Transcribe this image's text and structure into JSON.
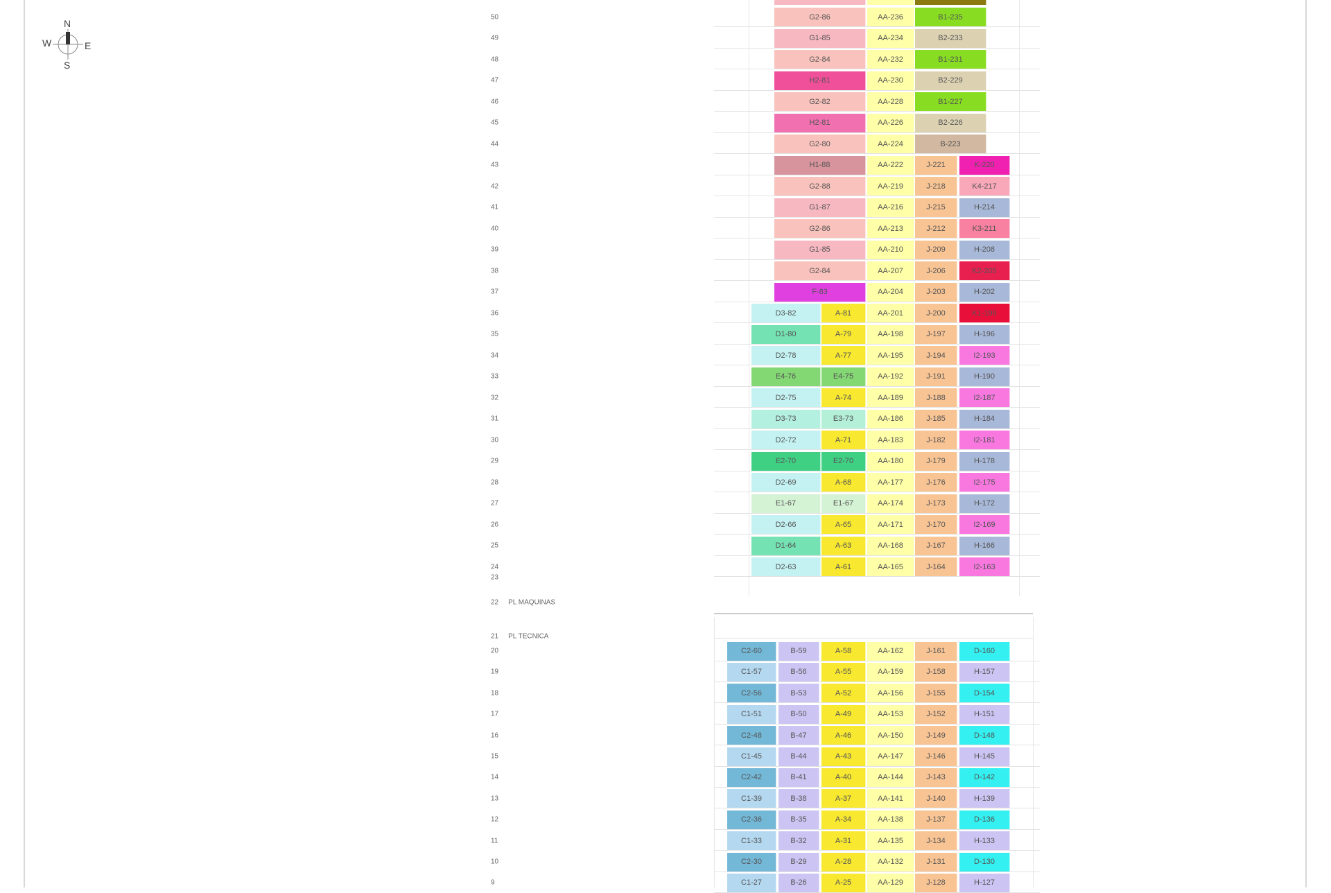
{
  "compass": {
    "n": "N",
    "s": "S",
    "e": "E",
    "w": "W"
  },
  "special_floors": [
    {
      "floor": "23",
      "name": ""
    },
    {
      "floor": "22",
      "name": "PL MAQUINAS"
    },
    {
      "floor": "21",
      "name": "PL TECNICA"
    }
  ],
  "upper_tower": [
    {
      "floor": "50",
      "cells": [
        {
          "label": "G2-86",
          "color": "#f9c2bc"
        },
        {
          "label": "AA-236",
          "color": "#ffffa8"
        },
        {
          "label": "B1-235",
          "color": "#88dd22"
        }
      ]
    },
    {
      "floor": "49",
      "cells": [
        {
          "label": "G1-85",
          "color": "#f7b8c2"
        },
        {
          "label": "AA-234",
          "color": "#ffffa8"
        },
        {
          "label": "B2-233",
          "color": "#dcd2b2"
        }
      ]
    },
    {
      "floor": "48",
      "cells": [
        {
          "label": "G2-84",
          "color": "#f9c2bc"
        },
        {
          "label": "AA-232",
          "color": "#ffffa8"
        },
        {
          "label": "B1-231",
          "color": "#88dd22"
        }
      ]
    },
    {
      "floor": "47",
      "cells": [
        {
          "label": "H2-81",
          "color": "#f0509a"
        },
        {
          "label": "AA-230",
          "color": "#ffffa8"
        },
        {
          "label": "B2-229",
          "color": "#dcd2b2"
        }
      ]
    },
    {
      "floor": "46",
      "cells": [
        {
          "label": "G2-82",
          "color": "#f9c2bc"
        },
        {
          "label": "AA-228",
          "color": "#ffffa8"
        },
        {
          "label": "B1-227",
          "color": "#88dd22"
        }
      ]
    },
    {
      "floor": "45",
      "cells": [
        {
          "label": "H2-81",
          "color": "#f070b0"
        },
        {
          "label": "AA-226",
          "color": "#ffffa8"
        },
        {
          "label": "B2-226",
          "color": "#dcd2b2"
        }
      ]
    },
    {
      "floor": "44",
      "cells": [
        {
          "label": "G2-80",
          "color": "#f9c2bc"
        },
        {
          "label": "AA-224",
          "color": "#ffffa8"
        },
        {
          "label": "B-223",
          "color": "#d2b8a0"
        }
      ]
    }
  ],
  "mid_tower": [
    {
      "floor": "43",
      "cells": [
        {
          "label": "H1-88",
          "color": "#d8949c"
        },
        {
          "label": "AA-222",
          "color": "#ffffa8"
        },
        {
          "label": "J-221",
          "color": "#f8c494"
        },
        {
          "label": "K-220",
          "color": "#f020b0"
        }
      ]
    },
    {
      "floor": "42",
      "cells": [
        {
          "label": "G2-88",
          "color": "#f9c2bc"
        },
        {
          "label": "AA-219",
          "color": "#ffffa8"
        },
        {
          "label": "J-218",
          "color": "#f8c494"
        },
        {
          "label": "K4-217",
          "color": "#f8a8b8"
        }
      ]
    },
    {
      "floor": "41",
      "cells": [
        {
          "label": "G1-87",
          "color": "#f7b8c2"
        },
        {
          "label": "AA-216",
          "color": "#ffffa8"
        },
        {
          "label": "J-215",
          "color": "#f8c494"
        },
        {
          "label": "H-214",
          "color": "#a8b8d8"
        }
      ]
    },
    {
      "floor": "40",
      "cells": [
        {
          "label": "G2-86",
          "color": "#f9c2bc"
        },
        {
          "label": "AA-213",
          "color": "#ffffa8"
        },
        {
          "label": "J-212",
          "color": "#f8c494"
        },
        {
          "label": "K3-211",
          "color": "#f880a0"
        }
      ]
    },
    {
      "floor": "39",
      "cells": [
        {
          "label": "G1-85",
          "color": "#f7b8c2"
        },
        {
          "label": "AA-210",
          "color": "#ffffa8"
        },
        {
          "label": "J-209",
          "color": "#f8c494"
        },
        {
          "label": "H-208",
          "color": "#a8b8d8"
        }
      ]
    },
    {
      "floor": "38",
      "cells": [
        {
          "label": "G2-84",
          "color": "#f9c2bc"
        },
        {
          "label": "AA-207",
          "color": "#ffffa8"
        },
        {
          "label": "J-206",
          "color": "#f8c494"
        },
        {
          "label": "K2-205",
          "color": "#e82050"
        }
      ]
    },
    {
      "floor": "37",
      "cells": [
        {
          "label": "F-83",
          "color": "#e040e0"
        },
        {
          "label": "AA-204",
          "color": "#ffffa8"
        },
        {
          "label": "J-203",
          "color": "#f8c494"
        },
        {
          "label": "H-202",
          "color": "#a8b8d8"
        }
      ]
    }
  ],
  "lower_tower": [
    {
      "floor": "36",
      "cells": [
        {
          "label": "D3-82",
          "color": "#c4f2f2"
        },
        {
          "label": "A-81",
          "color": "#f8e830"
        },
        {
          "label": "AA-201",
          "color": "#ffffa8"
        },
        {
          "label": "J-200",
          "color": "#f8c494"
        },
        {
          "label": "K1-199",
          "color": "#e8103a"
        }
      ]
    },
    {
      "floor": "35",
      "cells": [
        {
          "label": "D1-80",
          "color": "#74e2b2"
        },
        {
          "label": "A-79",
          "color": "#f8e830"
        },
        {
          "label": "AA-198",
          "color": "#ffffa8"
        },
        {
          "label": "J-197",
          "color": "#f8c494"
        },
        {
          "label": "H-196",
          "color": "#a8b8d8"
        }
      ]
    },
    {
      "floor": "34",
      "cells": [
        {
          "label": "D2-78",
          "color": "#c4f2f2"
        },
        {
          "label": "A-77",
          "color": "#f8e830"
        },
        {
          "label": "AA-195",
          "color": "#ffffa8"
        },
        {
          "label": "J-194",
          "color": "#f8c494"
        },
        {
          "label": "I2-193",
          "color": "#f878e0"
        }
      ]
    },
    {
      "floor": "33",
      "cells": [
        {
          "label": "E4-76",
          "color": "#84d874"
        },
        {
          "label": "E4-75",
          "color": "#84d874"
        },
        {
          "label": "AA-192",
          "color": "#ffffa8"
        },
        {
          "label": "J-191",
          "color": "#f8c494"
        },
        {
          "label": "H-190",
          "color": "#a8b8d8"
        }
      ]
    },
    {
      "floor": "32",
      "cells": [
        {
          "label": "D2-75",
          "color": "#c4f2f2"
        },
        {
          "label": "A-74",
          "color": "#f8e830"
        },
        {
          "label": "AA-189",
          "color": "#ffffa8"
        },
        {
          "label": "J-188",
          "color": "#f8c494"
        },
        {
          "label": "I2-187",
          "color": "#f878e0"
        }
      ]
    },
    {
      "floor": "31",
      "cells": [
        {
          "label": "D3-73",
          "color": "#b4f0e0"
        },
        {
          "label": "E3-73",
          "color": "#b4f0d8"
        },
        {
          "label": "AA-186",
          "color": "#ffffa8"
        },
        {
          "label": "J-185",
          "color": "#f8c494"
        },
        {
          "label": "H-184",
          "color": "#a8b8d8"
        }
      ]
    },
    {
      "floor": "30",
      "cells": [
        {
          "label": "D2-72",
          "color": "#c4f2f2"
        },
        {
          "label": "A-71",
          "color": "#f8e830"
        },
        {
          "label": "AA-183",
          "color": "#ffffa8"
        },
        {
          "label": "J-182",
          "color": "#f8c494"
        },
        {
          "label": "I2-181",
          "color": "#f878e0"
        }
      ]
    },
    {
      "floor": "29",
      "cells": [
        {
          "label": "E2-70",
          "color": "#40d084"
        },
        {
          "label": "E2-70",
          "color": "#40d084"
        },
        {
          "label": "AA-180",
          "color": "#ffffa8"
        },
        {
          "label": "J-179",
          "color": "#f8c494"
        },
        {
          "label": "H-178",
          "color": "#a8b8d8"
        }
      ]
    },
    {
      "floor": "28",
      "cells": [
        {
          "label": "D2-69",
          "color": "#c4f2f2"
        },
        {
          "label": "A-68",
          "color": "#f8e830"
        },
        {
          "label": "AA-177",
          "color": "#ffffa8"
        },
        {
          "label": "J-176",
          "color": "#f8c494"
        },
        {
          "label": "I2-175",
          "color": "#f878e0"
        }
      ]
    },
    {
      "floor": "27",
      "cells": [
        {
          "label": "E1-67",
          "color": "#d4f2d4"
        },
        {
          "label": "E1-67",
          "color": "#d4f2d4"
        },
        {
          "label": "AA-174",
          "color": "#ffffa8"
        },
        {
          "label": "J-173",
          "color": "#f8c494"
        },
        {
          "label": "H-172",
          "color": "#a8b8d8"
        }
      ]
    },
    {
      "floor": "26",
      "cells": [
        {
          "label": "D2-66",
          "color": "#c4f2f2"
        },
        {
          "label": "A-65",
          "color": "#f8e830"
        },
        {
          "label": "AA-171",
          "color": "#ffffa8"
        },
        {
          "label": "J-170",
          "color": "#f8c494"
        },
        {
          "label": "I2-169",
          "color": "#f878e0"
        }
      ]
    },
    {
      "floor": "25",
      "cells": [
        {
          "label": "D1-64",
          "color": "#74e2b2"
        },
        {
          "label": "A-63",
          "color": "#f8e830"
        },
        {
          "label": "AA-168",
          "color": "#ffffa8"
        },
        {
          "label": "J-167",
          "color": "#f8c494"
        },
        {
          "label": "H-166",
          "color": "#a8b8d8"
        }
      ]
    },
    {
      "floor": "24",
      "cells": [
        {
          "label": "D2-63",
          "color": "#c4f2f2"
        },
        {
          "label": "A-61",
          "color": "#f8e830"
        },
        {
          "label": "AA-165",
          "color": "#ffffa8"
        },
        {
          "label": "J-164",
          "color": "#f8c494"
        },
        {
          "label": "I2-163",
          "color": "#f878e0"
        }
      ]
    }
  ],
  "podium": [
    {
      "floor": "20",
      "cells": [
        {
          "label": "C2-60",
          "color": "#74b8d8"
        },
        {
          "label": "B-59",
          "color": "#ccc4f2"
        },
        {
          "label": "A-58",
          "color": "#f8e830"
        },
        {
          "label": "AA-162",
          "color": "#ffffa8"
        },
        {
          "label": "J-161",
          "color": "#f8c494"
        },
        {
          "label": "D-160",
          "color": "#34f0f0"
        }
      ]
    },
    {
      "floor": "19",
      "cells": [
        {
          "label": "C1-57",
          "color": "#b4d8f0"
        },
        {
          "label": "B-56",
          "color": "#ccc4f2"
        },
        {
          "label": "A-55",
          "color": "#f8e830"
        },
        {
          "label": "AA-159",
          "color": "#ffffa8"
        },
        {
          "label": "J-158",
          "color": "#f8c494"
        },
        {
          "label": "H-157",
          "color": "#ccc4f2"
        }
      ]
    },
    {
      "floor": "18",
      "cells": [
        {
          "label": "C2-56",
          "color": "#74b8d8"
        },
        {
          "label": "B-53",
          "color": "#ccc4f2"
        },
        {
          "label": "A-52",
          "color": "#f8e830"
        },
        {
          "label": "AA-156",
          "color": "#ffffa8"
        },
        {
          "label": "J-155",
          "color": "#f8c494"
        },
        {
          "label": "D-154",
          "color": "#34f0f0"
        }
      ]
    },
    {
      "floor": "17",
      "cells": [
        {
          "label": "C1-51",
          "color": "#b4d8f0"
        },
        {
          "label": "B-50",
          "color": "#ccc4f2"
        },
        {
          "label": "A-49",
          "color": "#f8e830"
        },
        {
          "label": "AA-153",
          "color": "#ffffa8"
        },
        {
          "label": "J-152",
          "color": "#f8c494"
        },
        {
          "label": "H-151",
          "color": "#ccc4f2"
        }
      ]
    },
    {
      "floor": "16",
      "cells": [
        {
          "label": "C2-48",
          "color": "#74b8d8"
        },
        {
          "label": "B-47",
          "color": "#ccc4f2"
        },
        {
          "label": "A-46",
          "color": "#f8e830"
        },
        {
          "label": "AA-150",
          "color": "#ffffa8"
        },
        {
          "label": "J-149",
          "color": "#f8c494"
        },
        {
          "label": "D-148",
          "color": "#34f0f0"
        }
      ]
    },
    {
      "floor": "15",
      "cells": [
        {
          "label": "C1-45",
          "color": "#b4d8f0"
        },
        {
          "label": "B-44",
          "color": "#ccc4f2"
        },
        {
          "label": "A-43",
          "color": "#f8e830"
        },
        {
          "label": "AA-147",
          "color": "#ffffa8"
        },
        {
          "label": "J-146",
          "color": "#f8c494"
        },
        {
          "label": "H-145",
          "color": "#ccc4f2"
        }
      ]
    },
    {
      "floor": "14",
      "cells": [
        {
          "label": "C2-42",
          "color": "#74b8d8"
        },
        {
          "label": "B-41",
          "color": "#ccc4f2"
        },
        {
          "label": "A-40",
          "color": "#f8e830"
        },
        {
          "label": "AA-144",
          "color": "#ffffa8"
        },
        {
          "label": "J-143",
          "color": "#f8c494"
        },
        {
          "label": "D-142",
          "color": "#34f0f0"
        }
      ]
    },
    {
      "floor": "13",
      "cells": [
        {
          "label": "C1-39",
          "color": "#b4d8f0"
        },
        {
          "label": "B-38",
          "color": "#ccc4f2"
        },
        {
          "label": "A-37",
          "color": "#f8e830"
        },
        {
          "label": "AA-141",
          "color": "#ffffa8"
        },
        {
          "label": "J-140",
          "color": "#f8c494"
        },
        {
          "label": "H-139",
          "color": "#ccc4f2"
        }
      ]
    },
    {
      "floor": "12",
      "cells": [
        {
          "label": "C2-36",
          "color": "#74b8d8"
        },
        {
          "label": "B-35",
          "color": "#ccc4f2"
        },
        {
          "label": "A-34",
          "color": "#f8e830"
        },
        {
          "label": "AA-138",
          "color": "#ffffa8"
        },
        {
          "label": "J-137",
          "color": "#f8c494"
        },
        {
          "label": "D-136",
          "color": "#34f0f0"
        }
      ]
    },
    {
      "floor": "11",
      "cells": [
        {
          "label": "C1-33",
          "color": "#b4d8f0"
        },
        {
          "label": "B-32",
          "color": "#ccc4f2"
        },
        {
          "label": "A-31",
          "color": "#f8e830"
        },
        {
          "label": "AA-135",
          "color": "#ffffa8"
        },
        {
          "label": "J-134",
          "color": "#f8c494"
        },
        {
          "label": "H-133",
          "color": "#ccc4f2"
        }
      ]
    },
    {
      "floor": "10",
      "cells": [
        {
          "label": "C2-30",
          "color": "#74b8d8"
        },
        {
          "label": "B-29",
          "color": "#ccc4f2"
        },
        {
          "label": "A-28",
          "color": "#f8e830"
        },
        {
          "label": "AA-132",
          "color": "#ffffa8"
        },
        {
          "label": "J-131",
          "color": "#f8c494"
        },
        {
          "label": "D-130",
          "color": "#34f0f0"
        }
      ]
    },
    {
      "floor": "9",
      "cells": [
        {
          "label": "C1-27",
          "color": "#b4d8f0"
        },
        {
          "label": "B-26",
          "color": "#ccc4f2"
        },
        {
          "label": "A-25",
          "color": "#f8e830"
        },
        {
          "label": "AA-129",
          "color": "#ffffa8"
        },
        {
          "label": "J-128",
          "color": "#f8c494"
        },
        {
          "label": "H-127",
          "color": "#ccc4f2"
        }
      ]
    }
  ]
}
